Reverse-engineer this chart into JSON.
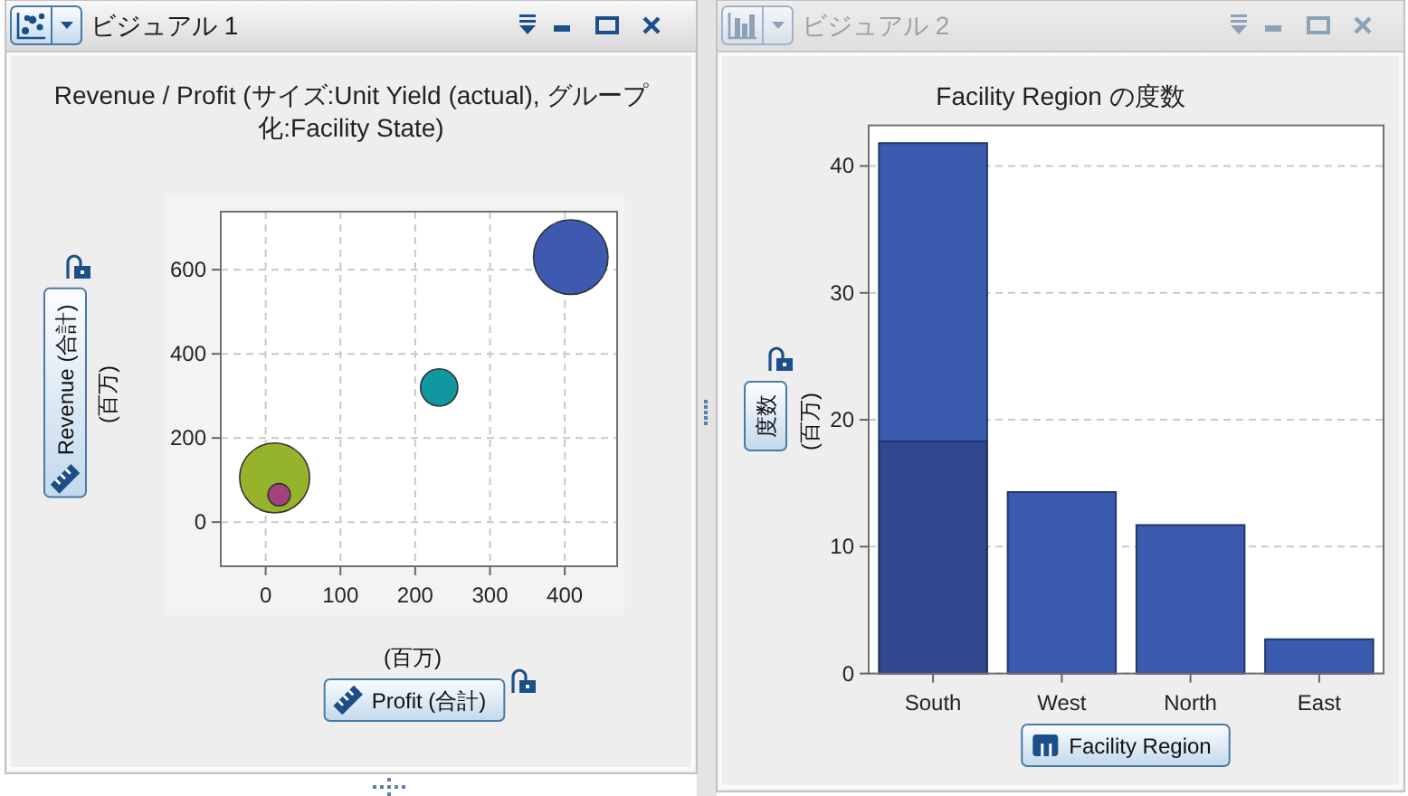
{
  "chart_data": [
    {
      "type": "bubble",
      "title": "Revenue / Profit (サイズ:Unit Yield (actual), グループ化:Facility State)",
      "xlabel": "Profit (合計)",
      "ylabel": "Revenue (合計)",
      "annotations": [
        "ビジュアル 1",
        "(百万)",
        "(百万)"
      ],
      "x": [
        408,
        232,
        12,
        18
      ],
      "values": [
        630,
        320,
        105,
        65
      ],
      "sizes": [
        1,
        0.25,
        0.88,
        0.09
      ],
      "colors": [
        "#3d5ab0",
        "#10979f",
        "#95b42b",
        "#a2427f"
      ],
      "xlim": [
        -60,
        470
      ],
      "ylim": [
        -105,
        738
      ],
      "xticks": [
        0,
        100,
        200,
        300,
        400
      ],
      "yticks": [
        0,
        200,
        400,
        600
      ],
      "grid": true
    },
    {
      "type": "bar",
      "title": "Facility Region の度数",
      "xlabel": "Facility Region",
      "ylabel": "度数",
      "annotations": [
        "ビジュアル 2",
        "(百万)"
      ],
      "categories": [
        "South",
        "West",
        "North",
        "East"
      ],
      "stacked": true,
      "series": [
        {
          "color": "#30488f",
          "values": [
            18.3,
            null,
            null,
            null
          ]
        },
        {
          "color": "#3b5bae",
          "values": [
            23.5,
            14.3,
            11.7,
            2.7
          ]
        }
      ],
      "ylim": [
        0,
        43.2
      ],
      "yticks": [
        0,
        10,
        20,
        30,
        40
      ],
      "grid": "y"
    }
  ]
}
